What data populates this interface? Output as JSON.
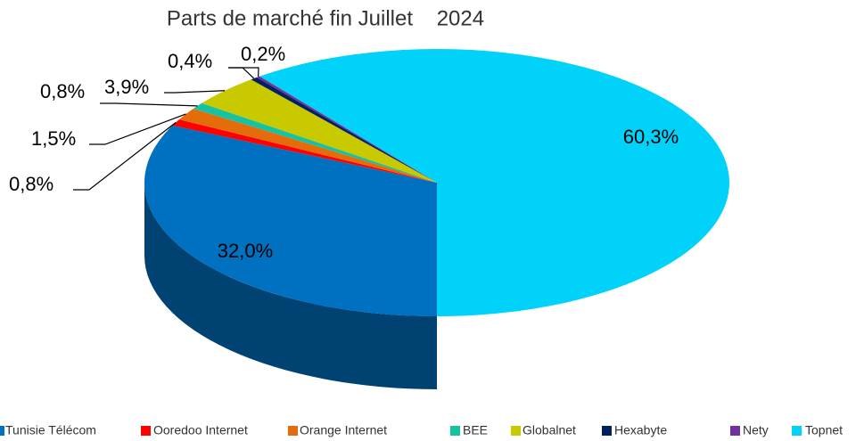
{
  "chart_data": {
    "type": "pie3d",
    "title": "Parts de marché fin Juillet    2024",
    "categories": [
      "Tunisie Télécom",
      "Ooredoo Internet",
      "Orange Internet",
      "BEE",
      "Globalnet",
      "Hexabyte",
      "Nety",
      "Topnet"
    ],
    "values": [
      32.0,
      0.8,
      1.5,
      0.8,
      3.9,
      0.4,
      0.2,
      60.3
    ],
    "value_labels": [
      "32,0%",
      "0,8%",
      "1,5%",
      "0,8%",
      "3,9%",
      "0,4%",
      "0,2%",
      "60,3%"
    ],
    "colors": [
      "#0070c0",
      "#ff0000",
      "#e46c0a",
      "#17c2a0",
      "#c9c900",
      "#002060",
      "#7030a0",
      "#00d2fa"
    ],
    "legend": "bottom"
  }
}
